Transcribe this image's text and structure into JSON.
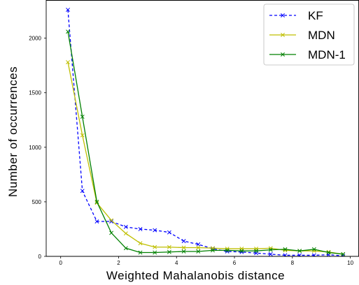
{
  "chart_data": {
    "type": "line",
    "title": "",
    "xlabel": "Weighted Mahalanobis distance",
    "ylabel": "Number of occurrences",
    "xlim": [
      -0.5,
      10.3
    ],
    "ylim": [
      0,
      2350
    ],
    "xticks": [
      0,
      2,
      4,
      6,
      8,
      10
    ],
    "yticks": [
      0,
      500,
      1000,
      1500,
      2000
    ],
    "grid": false,
    "legend_position": "top-right",
    "series": [
      {
        "name": "KF",
        "color": "#0000ff",
        "line_style": "dashed",
        "marker": "x",
        "x": [
          0.25,
          0.75,
          1.25,
          1.75,
          2.25,
          2.75,
          3.25,
          3.75,
          4.25,
          4.75,
          5.25,
          5.75,
          6.25,
          6.75,
          7.25,
          7.75,
          8.25,
          8.75,
          9.25,
          9.75
        ],
        "y": [
          2260,
          600,
          320,
          320,
          270,
          250,
          240,
          220,
          140,
          110,
          70,
          45,
          40,
          30,
          20,
          10,
          10,
          10,
          15,
          5
        ]
      },
      {
        "name": "MDN",
        "color": "#bfbf00",
        "line_style": "solid",
        "marker": "x",
        "x": [
          0.25,
          0.75,
          1.25,
          1.75,
          2.25,
          2.75,
          3.25,
          3.75,
          4.25,
          4.75,
          5.25,
          5.75,
          6.25,
          6.75,
          7.25,
          7.75,
          8.25,
          8.75,
          9.25,
          9.75
        ],
        "y": [
          1780,
          1110,
          490,
          330,
          210,
          120,
          85,
          85,
          80,
          80,
          75,
          70,
          70,
          70,
          75,
          55,
          50,
          50,
          40,
          20
        ]
      },
      {
        "name": "MDN-1",
        "color": "#008000",
        "line_style": "solid",
        "marker": "x",
        "x": [
          0.25,
          0.75,
          1.25,
          1.75,
          2.25,
          2.75,
          3.25,
          3.75,
          4.25,
          4.75,
          5.25,
          5.75,
          6.25,
          6.75,
          7.25,
          7.75,
          8.25,
          8.75,
          9.25,
          9.75
        ],
        "y": [
          2060,
          1280,
          500,
          215,
          75,
          35,
          35,
          40,
          45,
          45,
          55,
          55,
          50,
          50,
          60,
          65,
          50,
          65,
          35,
          20
        ]
      }
    ]
  }
}
